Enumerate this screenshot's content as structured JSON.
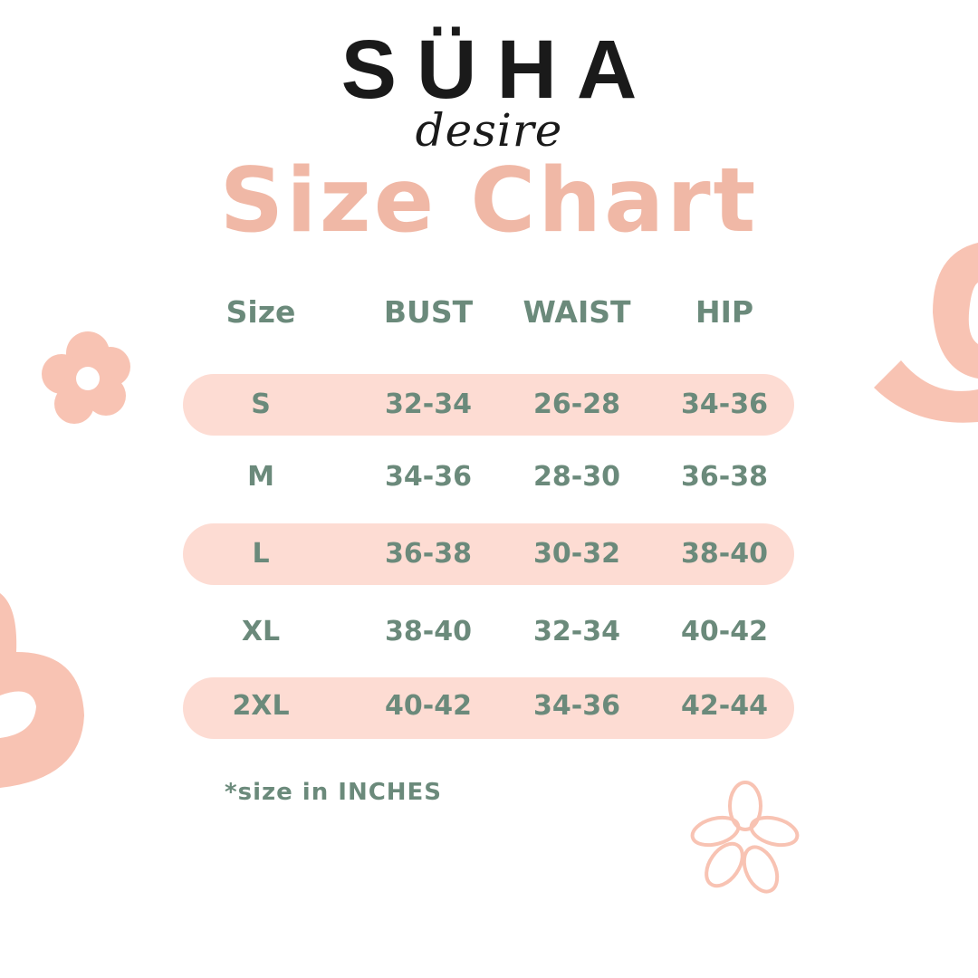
{
  "brand": {
    "name": "SÜHA",
    "tagline": "desire"
  },
  "title": "Size Chart",
  "table": {
    "headers": [
      "Size",
      "BUST",
      "WAIST",
      "HIP"
    ],
    "rows": [
      [
        "S",
        "32-34",
        "26-28",
        "34-36"
      ],
      [
        "M",
        "34-36",
        "28-30",
        "36-38"
      ],
      [
        "L",
        "36-38",
        "30-32",
        "38-40"
      ],
      [
        "XL",
        "38-40",
        "32-34",
        "40-42"
      ],
      [
        "2XL",
        "40-42",
        "34-36",
        "42-44"
      ]
    ]
  },
  "footnote": "*size in INCHES",
  "colors": {
    "title": "#f0b8a6",
    "text": "#6b8a7b",
    "row_highlight": "#fddcd3",
    "decoration": "#f8c3b3"
  }
}
